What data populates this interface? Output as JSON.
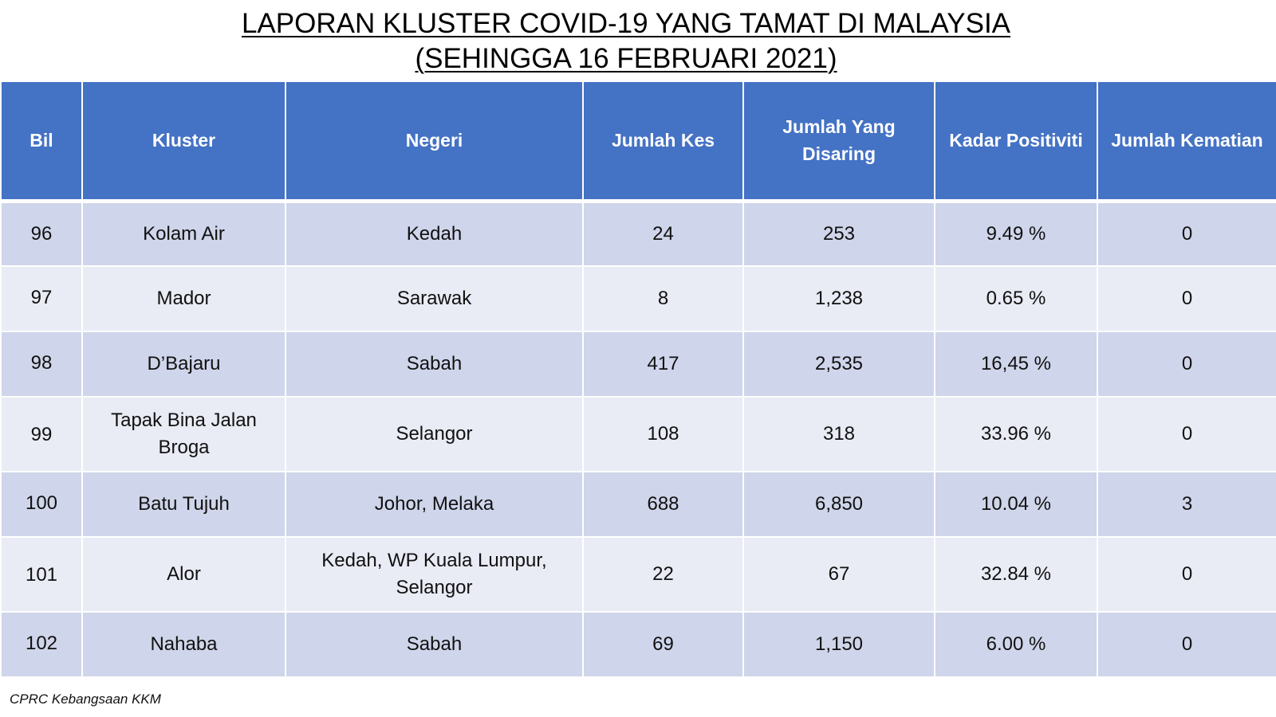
{
  "title": {
    "line1": "LAPORAN KLUSTER COVID-19 YANG TAMAT DI MALAYSIA",
    "line2": "(SEHINGGA  16 FEBRUARI 2021)"
  },
  "table": {
    "headers": {
      "bil": "Bil",
      "kluster": "Kluster",
      "negeri": "Negeri",
      "jumlah_kes": "Jumlah Kes",
      "jumlah_disaring": "Jumlah Yang Disaring",
      "kadar_positiviti": "Kadar Positiviti",
      "jumlah_kematian": "Jumlah Kematian"
    },
    "rows": [
      {
        "bil": "96",
        "kluster": "Kolam Air",
        "negeri": "Kedah",
        "kes": "24",
        "disaring": "253",
        "positiviti": "9.49 %",
        "kematian": "0"
      },
      {
        "bil": "97",
        "kluster": "Mador",
        "negeri": "Sarawak",
        "kes": "8",
        "disaring": "1,238",
        "positiviti": "0.65 %",
        "kematian": "0"
      },
      {
        "bil": "98",
        "kluster": "D’Bajaru",
        "negeri": "Sabah",
        "kes": "417",
        "disaring": "2,535",
        "positiviti": "16,45 %",
        "kematian": "0"
      },
      {
        "bil": "99",
        "kluster": "Tapak Bina Jalan Broga",
        "negeri": "Selangor",
        "kes": "108",
        "disaring": "318",
        "positiviti": "33.96 %",
        "kematian": "0"
      },
      {
        "bil": "100",
        "kluster": "Batu Tujuh",
        "negeri": "Johor, Melaka",
        "kes": "688",
        "disaring": "6,850",
        "positiviti": "10.04 %",
        "kematian": "3"
      },
      {
        "bil": "101",
        "kluster": "Alor",
        "negeri": "Kedah, WP Kuala Lumpur, Selangor",
        "kes": "22",
        "disaring": "67",
        "positiviti": "32.84 %",
        "kematian": "0"
      },
      {
        "bil": "102",
        "kluster": "Nahaba",
        "negeri": "Sabah",
        "kes": "69",
        "disaring": "1,150",
        "positiviti": "6.00 %",
        "kematian": "0"
      }
    ]
  },
  "source": "CPRC Kebangsaan KKM",
  "colors": {
    "header_bg": "#4472c4",
    "row_dark": "#cfd5ea",
    "row_light": "#e9ebf5"
  }
}
